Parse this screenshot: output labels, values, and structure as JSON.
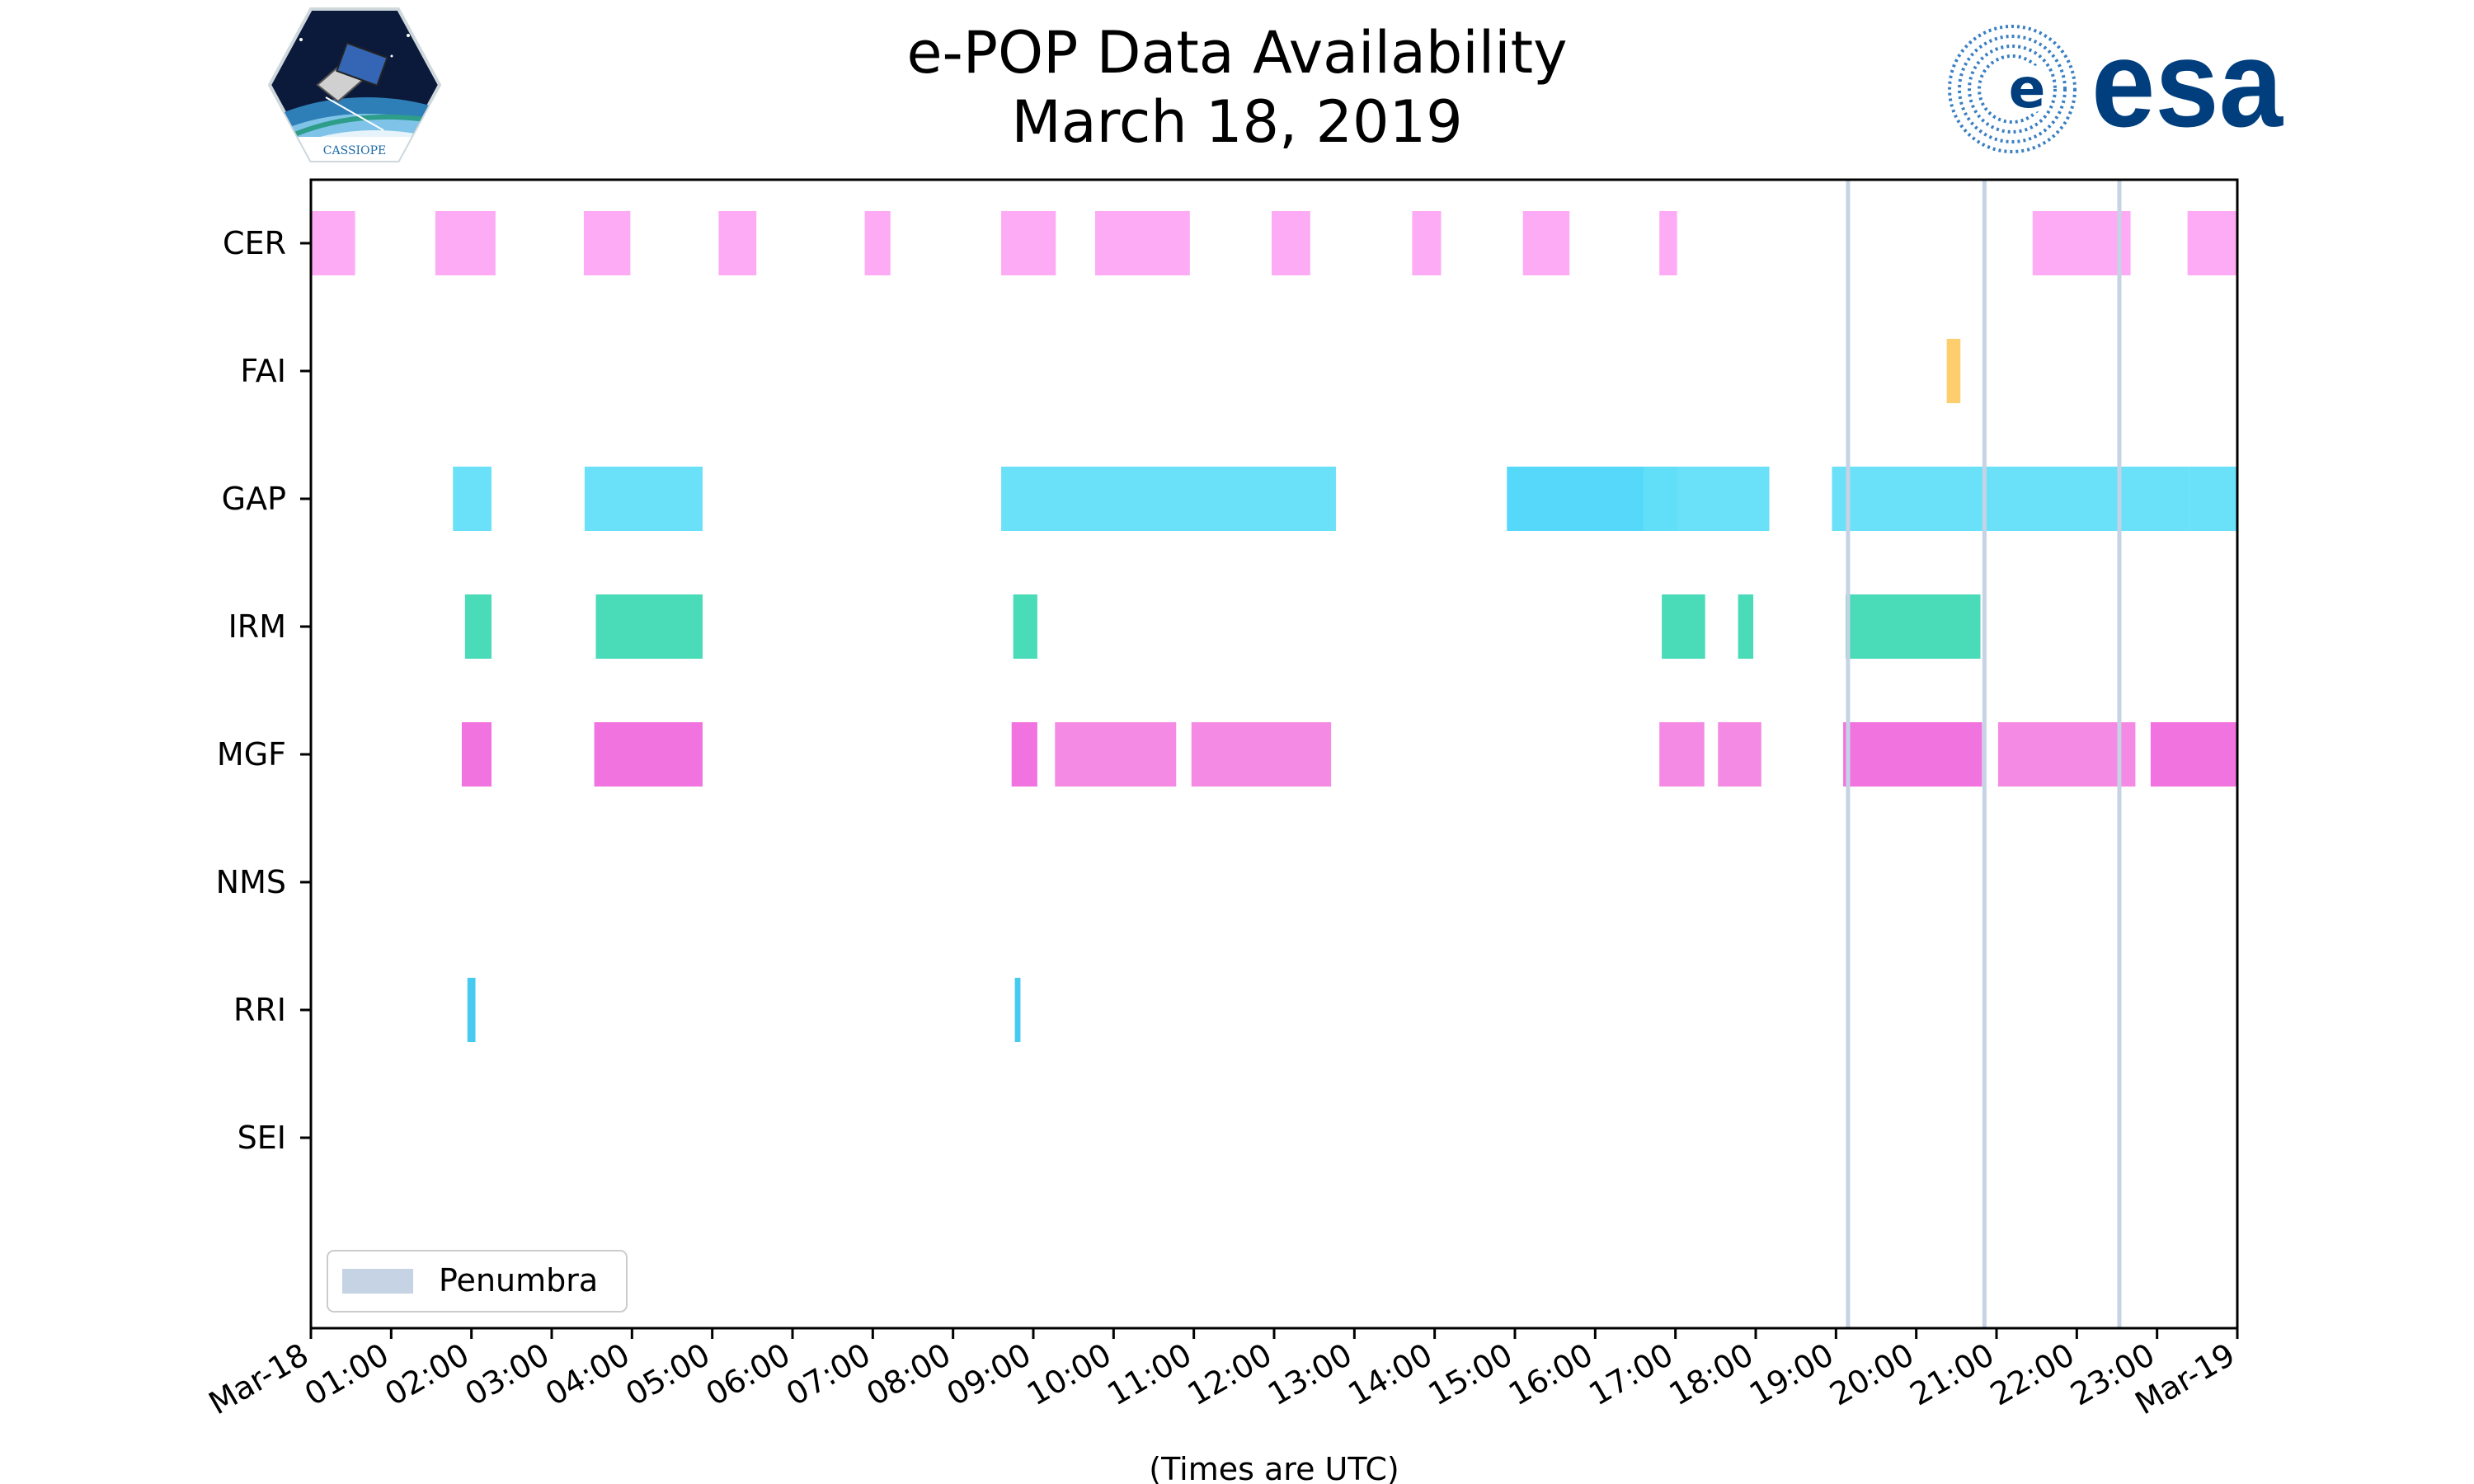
{
  "page": {
    "title_line1": "e-POP Data Availability",
    "title_line2": "March 18, 2019",
    "logo_left": {
      "icon": "cassiope-logo-icon",
      "text": "CASSIOPE"
    },
    "logo_right": {
      "icon": "esa-logo-icon",
      "text": "esa"
    }
  },
  "chart_data": {
    "type": "gantt",
    "title": "e-POP Data Availability March 18, 2019",
    "xlabel": "(Times are UTC)",
    "ylabel": "",
    "xlim": [
      0,
      24
    ],
    "x_unit": "hours UTC since Mar-18 00:00",
    "x_ticks": [
      {
        "value": 0,
        "label": "Mar-18"
      },
      {
        "value": 1,
        "label": "01:00"
      },
      {
        "value": 2,
        "label": "02:00"
      },
      {
        "value": 3,
        "label": "03:00"
      },
      {
        "value": 4,
        "label": "04:00"
      },
      {
        "value": 5,
        "label": "05:00"
      },
      {
        "value": 6,
        "label": "06:00"
      },
      {
        "value": 7,
        "label": "07:00"
      },
      {
        "value": 8,
        "label": "08:00"
      },
      {
        "value": 9,
        "label": "09:00"
      },
      {
        "value": 10,
        "label": "10:00"
      },
      {
        "value": 11,
        "label": "11:00"
      },
      {
        "value": 12,
        "label": "12:00"
      },
      {
        "value": 13,
        "label": "13:00"
      },
      {
        "value": 14,
        "label": "14:00"
      },
      {
        "value": 15,
        "label": "15:00"
      },
      {
        "value": 16,
        "label": "16:00"
      },
      {
        "value": 17,
        "label": "17:00"
      },
      {
        "value": 18,
        "label": "18:00"
      },
      {
        "value": 19,
        "label": "19:00"
      },
      {
        "value": 20,
        "label": "20:00"
      },
      {
        "value": 21,
        "label": "21:00"
      },
      {
        "value": 22,
        "label": "22:00"
      },
      {
        "value": 23,
        "label": "23:00"
      },
      {
        "value": 24,
        "label": "Mar-19"
      }
    ],
    "categories": [
      "CER",
      "FAI",
      "GAP",
      "IRM",
      "MGF",
      "NMS",
      "RRI",
      "SEI"
    ],
    "colors": {
      "CER": "#fca7f3",
      "FAI": "#fdcb65",
      "GAP": "#62dff8",
      "GAP_dark": "#4cd6fa",
      "IRM": "#40d9b4",
      "MGF": "#f06cde",
      "MGF_light": "#f384e3",
      "RRI": "#3cc7ef",
      "penumbra": "#c5d3e4"
    },
    "series": [
      {
        "name": "CER",
        "intervals": [
          [
            0.0,
            0.55
          ],
          [
            1.55,
            2.3
          ],
          [
            3.4,
            3.98
          ],
          [
            5.08,
            5.55
          ],
          [
            6.9,
            7.22
          ],
          [
            8.6,
            9.28
          ],
          [
            9.77,
            10.95
          ],
          [
            11.97,
            12.45
          ],
          [
            13.72,
            14.08
          ],
          [
            15.1,
            15.68
          ],
          [
            16.8,
            17.02
          ],
          [
            21.45,
            22.67
          ],
          [
            23.38,
            24.0
          ]
        ]
      },
      {
        "name": "FAI",
        "intervals": [
          [
            20.38,
            20.55
          ]
        ]
      },
      {
        "name": "GAP",
        "intervals": [
          [
            1.77,
            2.25
          ],
          [
            3.41,
            4.88
          ],
          [
            8.6,
            12.77
          ],
          [
            14.9,
            17.03,
            "dark"
          ],
          [
            16.6,
            18.17
          ],
          [
            18.95,
            23.4
          ],
          [
            23.4,
            24.0
          ]
        ]
      },
      {
        "name": "IRM",
        "intervals": [
          [
            1.92,
            2.25
          ],
          [
            3.55,
            4.88
          ],
          [
            8.75,
            9.05
          ],
          [
            16.83,
            17.37
          ],
          [
            17.78,
            17.97
          ],
          [
            19.12,
            20.8
          ]
        ]
      },
      {
        "name": "MGF",
        "intervals": [
          [
            1.88,
            2.25
          ],
          [
            3.53,
            4.88
          ],
          [
            8.73,
            9.05
          ],
          [
            9.27,
            10.78,
            "light"
          ],
          [
            10.97,
            12.71,
            "light"
          ],
          [
            16.8,
            17.36,
            "light"
          ],
          [
            17.53,
            18.07,
            "light"
          ],
          [
            19.09,
            20.82
          ],
          [
            21.02,
            22.73,
            "light"
          ],
          [
            22.92,
            24.0
          ]
        ]
      },
      {
        "name": "NMS",
        "intervals": []
      },
      {
        "name": "RRI",
        "intervals": [
          [
            1.95,
            2.05
          ],
          [
            8.77,
            8.84
          ]
        ]
      },
      {
        "name": "SEI",
        "intervals": []
      }
    ],
    "penumbra_times": [
      19.15,
      20.85,
      22.53
    ],
    "legend": {
      "entries": [
        "Penumbra"
      ],
      "position": "lower-left"
    },
    "grid": false
  }
}
